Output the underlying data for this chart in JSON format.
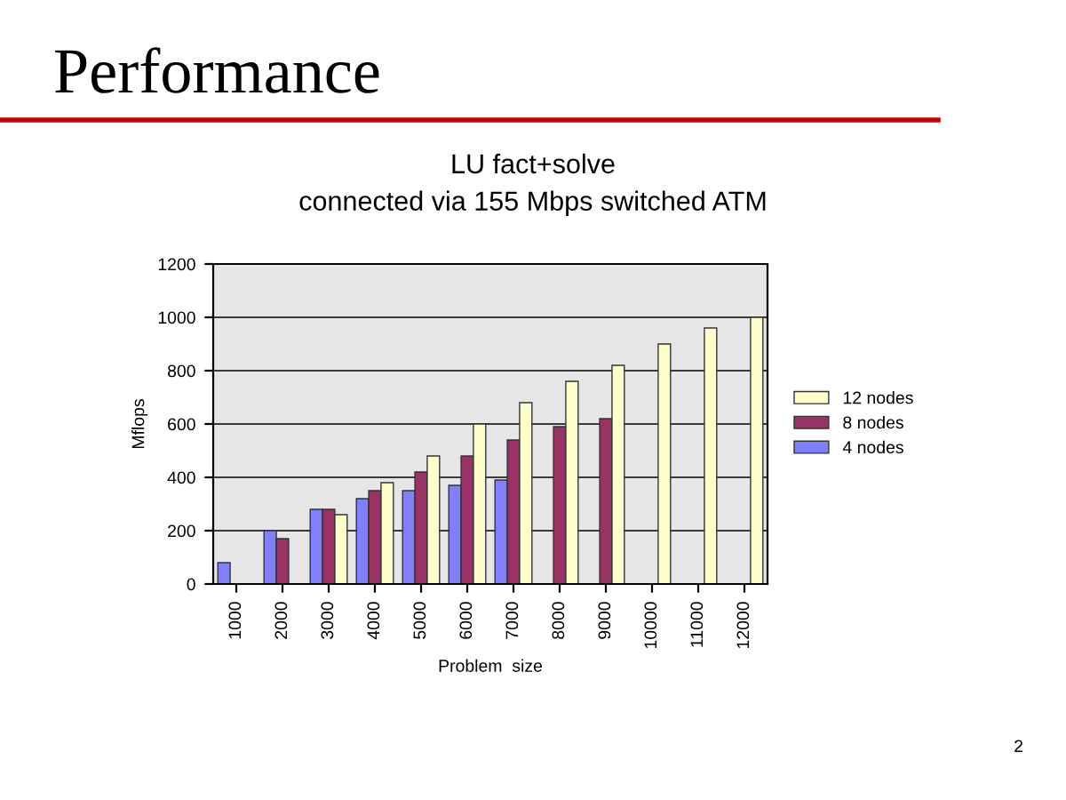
{
  "chart_data": {
    "type": "bar",
    "title": "Performance",
    "subtitle": "LU fact+solve\nconnected via 155 Mbps switched ATM",
    "xlabel": "Problem  size",
    "ylabel": "Mflops",
    "categories": [
      "1000",
      "2000",
      "3000",
      "4000",
      "5000",
      "6000",
      "7000",
      "8000",
      "9000",
      "10000",
      "11000",
      "12000"
    ],
    "series": [
      {
        "name": "4 nodes",
        "color": "#8080ff",
        "values": [
          80,
          200,
          280,
          320,
          350,
          370,
          390,
          null,
          null,
          null,
          null,
          null
        ]
      },
      {
        "name": "8 nodes",
        "color": "#993366",
        "values": [
          null,
          170,
          280,
          350,
          420,
          480,
          540,
          590,
          620,
          null,
          null,
          null
        ]
      },
      {
        "name": "12 nodes",
        "color": "#ffffcc",
        "values": [
          null,
          null,
          260,
          380,
          480,
          600,
          680,
          760,
          820,
          900,
          960,
          1000
        ]
      }
    ],
    "ylim": [
      0,
      1200
    ],
    "yticks": [
      0,
      200,
      400,
      600,
      800,
      1000,
      1200
    ],
    "grid": "y",
    "legend": "right",
    "annotations": [
      "2"
    ]
  }
}
